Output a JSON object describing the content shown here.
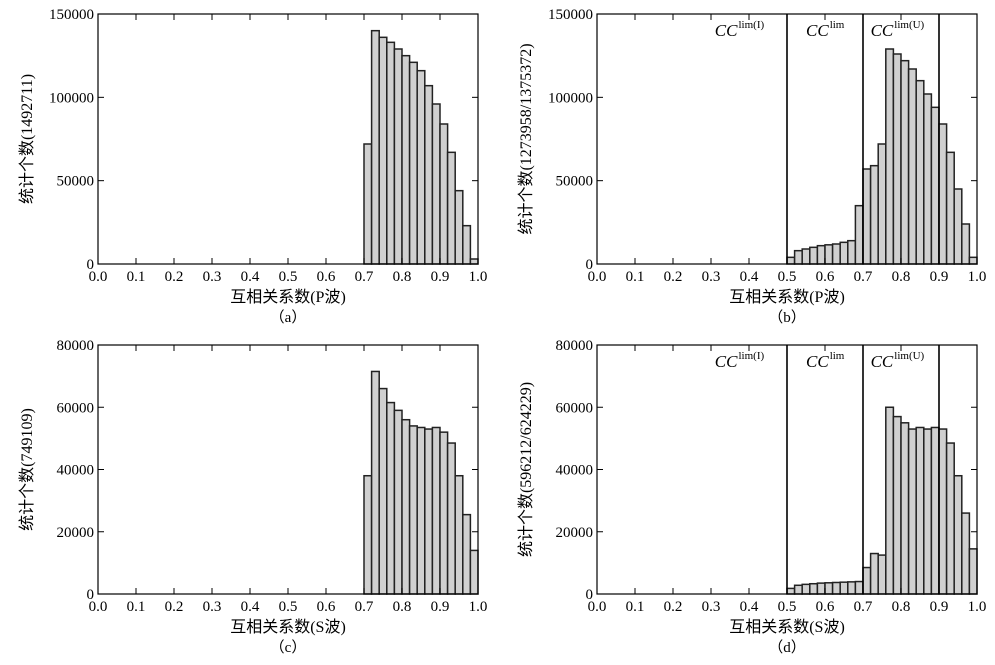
{
  "colors": {
    "bar_fill": "#d0d0d0",
    "bar_stroke": "#222222",
    "axis": "#000000"
  },
  "chart_data": [
    {
      "id": "a",
      "type": "bar",
      "caption": "（a）",
      "xlabel": "互相关系数(P波)",
      "ylabel": "统计个数(1492711)",
      "xlim": [
        0.0,
        1.0
      ],
      "ylim": [
        0,
        150000
      ],
      "xticks": [
        "0.0",
        "0.1",
        "0.2",
        "0.3",
        "0.4",
        "0.5",
        "0.6",
        "0.7",
        "0.8",
        "0.9",
        "1.0"
      ],
      "yticks": [
        0,
        50000,
        100000,
        150000
      ],
      "bin_width": 0.02,
      "bin_starts": [
        0.7,
        0.72,
        0.74,
        0.76,
        0.78,
        0.8,
        0.82,
        0.84,
        0.86,
        0.88,
        0.9,
        0.92,
        0.94,
        0.96,
        0.98
      ],
      "values": [
        72000,
        140000,
        136000,
        133000,
        129000,
        125000,
        121000,
        116000,
        107000,
        96000,
        84000,
        67000,
        44000,
        23000,
        3000
      ],
      "annotations": []
    },
    {
      "id": "b",
      "type": "bar",
      "caption": "（b）",
      "xlabel": "互相关系数(P波)",
      "ylabel": "统计个数(1273958/1375372)",
      "xlim": [
        0.0,
        1.0
      ],
      "ylim": [
        0,
        150000
      ],
      "xticks": [
        "0.0",
        "0.1",
        "0.2",
        "0.3",
        "0.4",
        "0.5",
        "0.6",
        "0.7",
        "0.8",
        "0.9",
        "1.0"
      ],
      "yticks": [
        0,
        50000,
        100000,
        150000
      ],
      "bin_width": 0.02,
      "bin_starts": [
        0.5,
        0.52,
        0.54,
        0.56,
        0.58,
        0.6,
        0.62,
        0.64,
        0.66,
        0.68,
        0.7,
        0.72,
        0.74,
        0.76,
        0.78,
        0.8,
        0.82,
        0.84,
        0.86,
        0.88,
        0.9,
        0.92,
        0.94,
        0.96,
        0.98
      ],
      "values": [
        4000,
        8000,
        9000,
        10000,
        11000,
        11500,
        12000,
        13000,
        14000,
        35000,
        57000,
        59000,
        72000,
        129000,
        126000,
        122000,
        117000,
        110000,
        102000,
        94000,
        84000,
        67000,
        45000,
        24000,
        4000
      ],
      "vlines": [
        0.5,
        0.7,
        0.9
      ],
      "annotations": [
        {
          "base": "CC",
          "sup": "lim(I)",
          "x": 0.31
        },
        {
          "base": "CC",
          "sup": "lim",
          "x": 0.55
        },
        {
          "base": "CC",
          "sup": "lim(U)",
          "x": 0.72
        }
      ]
    },
    {
      "id": "c",
      "type": "bar",
      "caption": "（c）",
      "xlabel": "互相关系数(S波)",
      "ylabel": "统计个数(749109)",
      "xlim": [
        0.0,
        1.0
      ],
      "ylim": [
        0,
        80000
      ],
      "xticks": [
        "0.0",
        "0.1",
        "0.2",
        "0.3",
        "0.4",
        "0.5",
        "0.6",
        "0.7",
        "0.8",
        "0.9",
        "1.0"
      ],
      "yticks": [
        0,
        20000,
        40000,
        60000,
        80000
      ],
      "bin_width": 0.02,
      "bin_starts": [
        0.7,
        0.72,
        0.74,
        0.76,
        0.78,
        0.8,
        0.82,
        0.84,
        0.86,
        0.88,
        0.9,
        0.92,
        0.94,
        0.96,
        0.98
      ],
      "values": [
        38000,
        71500,
        66000,
        61500,
        59000,
        56000,
        54000,
        53500,
        53000,
        53500,
        52000,
        48500,
        38000,
        25500,
        14000
      ],
      "annotations": []
    },
    {
      "id": "d",
      "type": "bar",
      "caption": "（d）",
      "xlabel": "互相关系数(S波)",
      "ylabel": "统计个数(596212/624229)",
      "xlim": [
        0.0,
        1.0
      ],
      "ylim": [
        0,
        80000
      ],
      "xticks": [
        "0.0",
        "0.1",
        "0.2",
        "0.3",
        "0.4",
        "0.5",
        "0.6",
        "0.7",
        "0.8",
        "0.9",
        "1.0"
      ],
      "yticks": [
        0,
        20000,
        40000,
        60000,
        80000
      ],
      "bin_width": 0.02,
      "bin_starts": [
        0.5,
        0.52,
        0.54,
        0.56,
        0.58,
        0.6,
        0.62,
        0.64,
        0.66,
        0.68,
        0.7,
        0.72,
        0.74,
        0.76,
        0.78,
        0.8,
        0.82,
        0.84,
        0.86,
        0.88,
        0.9,
        0.92,
        0.94,
        0.96,
        0.98
      ],
      "values": [
        1800,
        2800,
        3100,
        3300,
        3500,
        3600,
        3700,
        3800,
        3900,
        4000,
        8500,
        13000,
        12500,
        60000,
        57000,
        55000,
        53000,
        53500,
        53000,
        53500,
        53000,
        48500,
        38000,
        26000,
        14500
      ],
      "vlines": [
        0.5,
        0.7,
        0.9
      ],
      "annotations": [
        {
          "base": "CC",
          "sup": "lim(I)",
          "x": 0.31
        },
        {
          "base": "CC",
          "sup": "lim",
          "x": 0.55
        },
        {
          "base": "CC",
          "sup": "lim(U)",
          "x": 0.72
        }
      ]
    }
  ]
}
